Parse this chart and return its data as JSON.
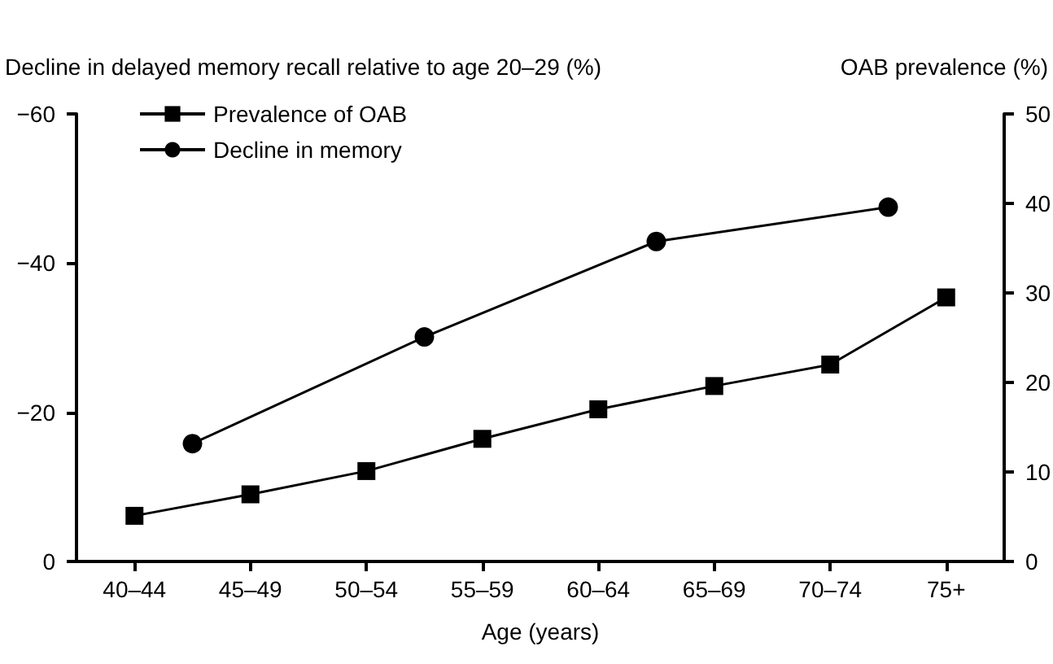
{
  "chart_data": {
    "type": "line",
    "xlabel": "Age (years)",
    "ylabel": "Decline in delayed memory recall relative to age 20–29 (%)",
    "y2label": "OAB prevalence (%)",
    "categories": [
      "40–44",
      null,
      "45–49",
      null,
      "50–54",
      null,
      "55–59",
      null,
      "60–64",
      null,
      "65–69",
      null,
      "70–74",
      null,
      "75+"
    ],
    "ylim": [
      0,
      -60
    ],
    "yticks": [
      0,
      {
        "value": -20,
        "label": "−20"
      },
      {
        "value": -40,
        "label": "−40"
      },
      {
        "value": -60,
        "label": "−60"
      }
    ],
    "y2lim": [
      0,
      50
    ],
    "y2ticks": [
      0,
      10,
      20,
      30,
      40,
      50
    ],
    "series": [
      {
        "name": "Prevalence of OAB",
        "color": "#000000",
        "axis": "y2",
        "marker": "square",
        "values": [
          5.1,
          null,
          7.5,
          null,
          10.1,
          null,
          13.7,
          null,
          17.0,
          null,
          19.6,
          null,
          22.0,
          null,
          29.5
        ]
      },
      {
        "name": "Decline in memory",
        "color": "#000000",
        "axis": "y",
        "marker": "circle",
        "values": [
          null,
          -15.8,
          null,
          null,
          null,
          -30.1,
          null,
          null,
          null,
          -42.9,
          null,
          null,
          null,
          -47.5,
          null
        ]
      }
    ],
    "legend": "top left",
    "grid": false,
    "line_style": "solid"
  }
}
